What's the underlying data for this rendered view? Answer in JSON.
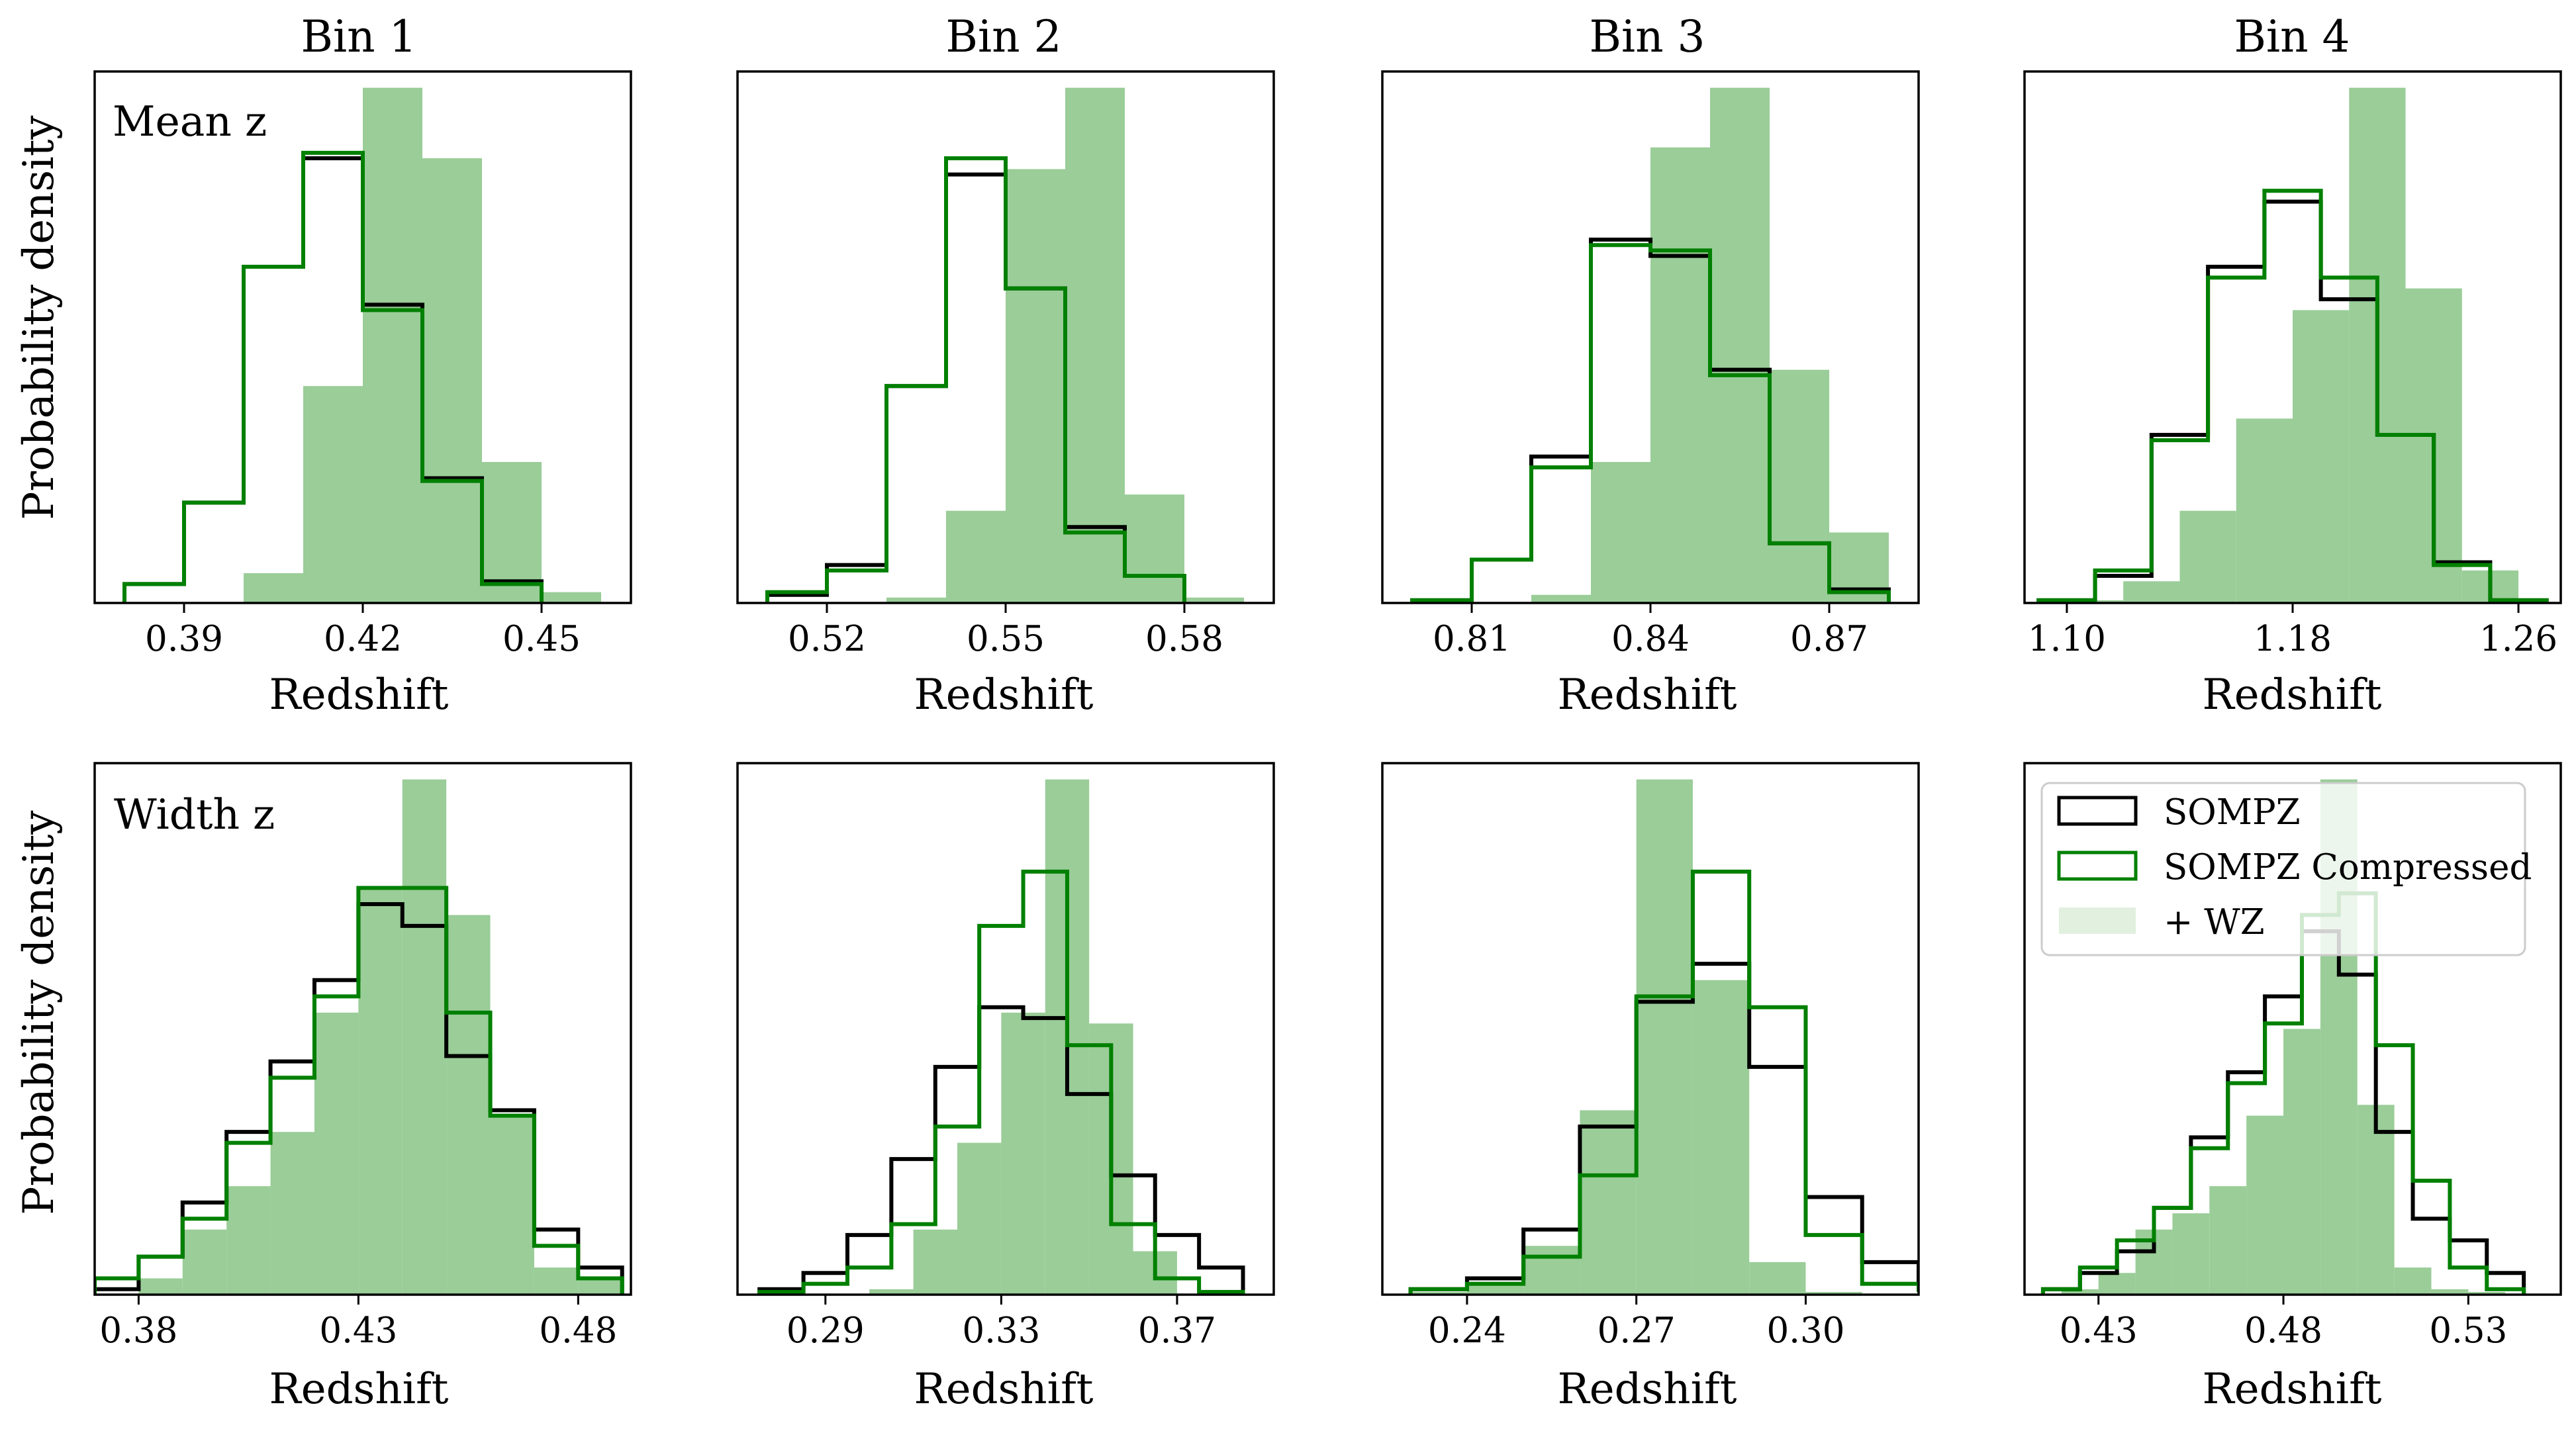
{
  "figure": {
    "column_titles": [
      "Bin 1",
      "Bin 2",
      "Bin 3",
      "Bin 4"
    ],
    "row_labels": [
      "Mean z",
      "Width z"
    ],
    "xlabel": "Redshift",
    "ylabel": "Probability density"
  },
  "legend": {
    "entries": [
      {
        "label": "SOMPZ",
        "kind": "outline",
        "color": "#000000"
      },
      {
        "label": "SOMPZ Compressed",
        "kind": "outline",
        "color": "#008000"
      },
      {
        "label": "+ WZ",
        "kind": "filled",
        "color": "#e2f0e0"
      }
    ],
    "location": "upper right of bottom-right panel"
  },
  "colors": {
    "sompz": "#000000",
    "compressed": "#008000",
    "wz_fill": "#9acd98"
  },
  "chart_data": [
    {
      "type": "histogram",
      "title": "Bin 1",
      "panel_label": "Mean z",
      "xlabel": "",
      "ylabel": "Probability density",
      "xlim": [
        0.375,
        0.465
      ],
      "ylim": [
        0,
        0.98
      ],
      "xticks": [
        0.39,
        0.42,
        0.45
      ],
      "xticklabels": [
        "0.39",
        "0.42",
        "0.45"
      ],
      "series": [
        {
          "name": "+ WZ",
          "style": "filled",
          "color": "#9acd98",
          "edges": [
            0.4,
            0.41,
            0.42,
            0.43,
            0.44,
            0.45,
            0.46
          ],
          "values": [
            0.055,
            0.4,
            0.95,
            0.82,
            0.26,
            0.02
          ]
        },
        {
          "name": "SOMPZ",
          "style": "step",
          "color": "#000000",
          "edges": [
            0.38,
            0.39,
            0.4,
            0.41,
            0.42,
            0.43,
            0.44,
            0.45
          ],
          "values": [
            0.035,
            0.185,
            0.62,
            0.82,
            0.55,
            0.23,
            0.04
          ]
        },
        {
          "name": "SOMPZ Compressed",
          "style": "step",
          "color": "#008000",
          "edges": [
            0.38,
            0.39,
            0.4,
            0.41,
            0.42,
            0.43,
            0.44,
            0.45
          ],
          "values": [
            0.035,
            0.185,
            0.62,
            0.83,
            0.54,
            0.225,
            0.035
          ]
        }
      ]
    },
    {
      "type": "histogram",
      "title": "Bin 2",
      "panel_label": "",
      "xlabel": "",
      "ylabel": "",
      "xlim": [
        0.505,
        0.595
      ],
      "ylim": [
        0,
        0.98
      ],
      "xticks": [
        0.52,
        0.55,
        0.58
      ],
      "xticklabels": [
        "0.52",
        "0.55",
        "0.58"
      ],
      "series": [
        {
          "name": "+ WZ",
          "style": "filled",
          "color": "#9acd98",
          "edges": [
            0.53,
            0.54,
            0.55,
            0.56,
            0.57,
            0.58,
            0.59
          ],
          "values": [
            0.01,
            0.17,
            0.8,
            0.95,
            0.2,
            0.01
          ]
        },
        {
          "name": "SOMPZ",
          "style": "step",
          "color": "#000000",
          "edges": [
            0.51,
            0.52,
            0.53,
            0.54,
            0.55,
            0.56,
            0.57,
            0.58
          ],
          "values": [
            0.015,
            0.07,
            0.4,
            0.79,
            0.58,
            0.14,
            0.05
          ]
        },
        {
          "name": "SOMPZ Compressed",
          "style": "step",
          "color": "#008000",
          "edges": [
            0.51,
            0.52,
            0.53,
            0.54,
            0.55,
            0.56,
            0.57,
            0.58
          ],
          "values": [
            0.02,
            0.06,
            0.4,
            0.82,
            0.58,
            0.13,
            0.05
          ]
        }
      ]
    },
    {
      "type": "histogram",
      "title": "Bin 3",
      "panel_label": "",
      "xlabel": "",
      "ylabel": "",
      "xlim": [
        0.795,
        0.885
      ],
      "ylim": [
        0,
        0.98
      ],
      "xticks": [
        0.81,
        0.84,
        0.87
      ],
      "xticklabels": [
        "0.81",
        "0.84",
        "0.87"
      ],
      "series": [
        {
          "name": "+ WZ",
          "style": "filled",
          "color": "#9acd98",
          "edges": [
            0.82,
            0.83,
            0.84,
            0.85,
            0.86,
            0.87,
            0.88
          ],
          "values": [
            0.015,
            0.26,
            0.84,
            0.95,
            0.43,
            0.13
          ]
        },
        {
          "name": "SOMPZ",
          "style": "step",
          "color": "#000000",
          "edges": [
            0.8,
            0.81,
            0.82,
            0.83,
            0.84,
            0.85,
            0.86,
            0.87,
            0.88
          ],
          "values": [
            0.005,
            0.08,
            0.27,
            0.67,
            0.64,
            0.43,
            0.11,
            0.025
          ]
        },
        {
          "name": "SOMPZ Compressed",
          "style": "step",
          "color": "#008000",
          "edges": [
            0.8,
            0.81,
            0.82,
            0.83,
            0.84,
            0.85,
            0.86,
            0.87,
            0.88
          ],
          "values": [
            0.005,
            0.08,
            0.25,
            0.66,
            0.65,
            0.42,
            0.11,
            0.02
          ]
        }
      ]
    },
    {
      "type": "histogram",
      "title": "Bin 4",
      "panel_label": "",
      "xlabel": "",
      "ylabel": "",
      "xlim": [
        1.085,
        1.275
      ],
      "ylim": [
        0,
        0.98
      ],
      "xticks": [
        1.1,
        1.18,
        1.26
      ],
      "xticklabels": [
        "1.10",
        "1.18",
        "1.26"
      ],
      "series": [
        {
          "name": "+ WZ",
          "style": "filled",
          "color": "#9acd98",
          "edges": [
            1.1,
            1.12,
            1.14,
            1.16,
            1.18,
            1.2,
            1.22,
            1.24,
            1.26
          ],
          "values": [
            0.005,
            0.04,
            0.17,
            0.34,
            0.54,
            0.95,
            0.58,
            0.06
          ]
        },
        {
          "name": "SOMPZ",
          "style": "step",
          "color": "#000000",
          "edges": [
            1.09,
            1.11,
            1.13,
            1.15,
            1.17,
            1.19,
            1.21,
            1.23,
            1.25,
            1.27
          ],
          "values": [
            0.005,
            0.05,
            0.31,
            0.62,
            0.74,
            0.56,
            0.31,
            0.075,
            0.005
          ]
        },
        {
          "name": "SOMPZ Compressed",
          "style": "step",
          "color": "#008000",
          "edges": [
            1.09,
            1.11,
            1.13,
            1.15,
            1.17,
            1.19,
            1.21,
            1.23,
            1.25,
            1.27
          ],
          "values": [
            0.005,
            0.06,
            0.3,
            0.6,
            0.76,
            0.6,
            0.31,
            0.07,
            0.005
          ]
        }
      ]
    },
    {
      "type": "histogram",
      "title": "",
      "panel_label": "Width z",
      "xlabel": "Redshift",
      "ylabel": "Probability density",
      "xlim": [
        0.37,
        0.492
      ],
      "ylim": [
        0,
        0.98
      ],
      "xticks": [
        0.38,
        0.43,
        0.48
      ],
      "xticklabels": [
        "0.38",
        "0.43",
        "0.48"
      ],
      "series": [
        {
          "name": "+ WZ",
          "style": "filled",
          "color": "#9acd98",
          "edges": [
            0.38,
            0.39,
            0.4,
            0.41,
            0.42,
            0.43,
            0.44,
            0.45,
            0.46,
            0.47,
            0.48,
            0.49
          ],
          "values": [
            0.03,
            0.12,
            0.2,
            0.3,
            0.52,
            0.75,
            0.95,
            0.7,
            0.33,
            0.05,
            0.03
          ]
        },
        {
          "name": "SOMPZ",
          "style": "step",
          "color": "#000000",
          "edges": [
            0.37,
            0.38,
            0.39,
            0.4,
            0.41,
            0.42,
            0.43,
            0.44,
            0.45,
            0.46,
            0.47,
            0.48,
            0.49
          ],
          "values": [
            0.01,
            0.07,
            0.17,
            0.3,
            0.43,
            0.58,
            0.72,
            0.68,
            0.44,
            0.34,
            0.12,
            0.05
          ]
        },
        {
          "name": "SOMPZ Compressed",
          "style": "step",
          "color": "#008000",
          "edges": [
            0.37,
            0.38,
            0.39,
            0.4,
            0.41,
            0.42,
            0.43,
            0.44,
            0.45,
            0.46,
            0.47,
            0.48,
            0.49
          ],
          "values": [
            0.03,
            0.07,
            0.14,
            0.28,
            0.4,
            0.55,
            0.75,
            0.75,
            0.52,
            0.33,
            0.09,
            0.03
          ]
        }
      ]
    },
    {
      "type": "histogram",
      "title": "",
      "panel_label": "",
      "xlabel": "Redshift",
      "ylabel": "",
      "xlim": [
        0.27,
        0.392
      ],
      "ylim": [
        0,
        0.98
      ],
      "xticks": [
        0.29,
        0.33,
        0.37
      ],
      "xticklabels": [
        "0.29",
        "0.33",
        "0.37"
      ],
      "series": [
        {
          "name": "+ WZ",
          "style": "filled",
          "color": "#9acd98",
          "edges": [
            0.3,
            0.31,
            0.32,
            0.33,
            0.34,
            0.35,
            0.36,
            0.37
          ],
          "values": [
            0.01,
            0.12,
            0.28,
            0.52,
            0.95,
            0.5,
            0.08
          ]
        },
        {
          "name": "SOMPZ",
          "style": "step",
          "color": "#000000",
          "edges": [
            0.275,
            0.285,
            0.295,
            0.305,
            0.315,
            0.325,
            0.335,
            0.345,
            0.355,
            0.365,
            0.375,
            0.385
          ],
          "values": [
            0.01,
            0.04,
            0.11,
            0.25,
            0.42,
            0.53,
            0.51,
            0.37,
            0.22,
            0.11,
            0.05
          ]
        },
        {
          "name": "SOMPZ Compressed",
          "style": "step",
          "color": "#008000",
          "edges": [
            0.275,
            0.285,
            0.295,
            0.305,
            0.315,
            0.325,
            0.335,
            0.345,
            0.355,
            0.365,
            0.375,
            0.385
          ],
          "values": [
            0.005,
            0.02,
            0.05,
            0.13,
            0.31,
            0.68,
            0.78,
            0.46,
            0.13,
            0.03,
            0.005
          ]
        }
      ]
    },
    {
      "type": "histogram",
      "title": "",
      "panel_label": "",
      "xlabel": "Redshift",
      "ylabel": "",
      "xlim": [
        0.225,
        0.32
      ],
      "ylim": [
        0,
        0.98
      ],
      "xticks": [
        0.24,
        0.27,
        0.3
      ],
      "xticklabels": [
        "0.24",
        "0.27",
        "0.30"
      ],
      "series": [
        {
          "name": "+ WZ",
          "style": "filled",
          "color": "#9acd98",
          "edges": [
            0.23,
            0.24,
            0.25,
            0.26,
            0.27,
            0.28,
            0.29,
            0.3,
            0.31
          ],
          "values": [
            0.005,
            0.02,
            0.09,
            0.34,
            0.95,
            0.58,
            0.06,
            0.005
          ]
        },
        {
          "name": "SOMPZ",
          "style": "step",
          "color": "#000000",
          "edges": [
            0.23,
            0.24,
            0.25,
            0.26,
            0.27,
            0.28,
            0.29,
            0.3,
            0.31,
            0.32
          ],
          "values": [
            0.01,
            0.03,
            0.12,
            0.31,
            0.54,
            0.61,
            0.42,
            0.18,
            0.06,
            0.01
          ]
        },
        {
          "name": "SOMPZ Compressed",
          "style": "step",
          "color": "#008000",
          "edges": [
            0.23,
            0.24,
            0.25,
            0.26,
            0.27,
            0.28,
            0.29,
            0.3,
            0.31,
            0.32
          ],
          "values": [
            0.01,
            0.02,
            0.07,
            0.22,
            0.55,
            0.78,
            0.53,
            0.11,
            0.02,
            0.005
          ]
        }
      ]
    },
    {
      "type": "histogram",
      "title": "",
      "panel_label": "",
      "xlabel": "Redshift",
      "ylabel": "",
      "xlim": [
        0.41,
        0.555
      ],
      "ylim": [
        0,
        0.98
      ],
      "xticks": [
        0.43,
        0.48,
        0.53
      ],
      "xticklabels": [
        "0.43",
        "0.48",
        "0.53"
      ],
      "series": [
        {
          "name": "+ WZ",
          "style": "filled",
          "color": "#9acd98",
          "edges": [
            0.42,
            0.43,
            0.44,
            0.45,
            0.46,
            0.47,
            0.48,
            0.49,
            0.5,
            0.51,
            0.52,
            0.53,
            0.54
          ],
          "values": [
            0.01,
            0.04,
            0.12,
            0.15,
            0.2,
            0.33,
            0.49,
            0.95,
            0.35,
            0.05,
            0.01,
            0.005
          ]
        },
        {
          "name": "SOMPZ",
          "style": "step",
          "color": "#000000",
          "edges": [
            0.415,
            0.425,
            0.435,
            0.445,
            0.455,
            0.465,
            0.475,
            0.485,
            0.495,
            0.505,
            0.515,
            0.525,
            0.535,
            0.545
          ],
          "values": [
            0.01,
            0.04,
            0.08,
            0.16,
            0.29,
            0.41,
            0.55,
            0.67,
            0.59,
            0.3,
            0.14,
            0.1,
            0.04
          ]
        },
        {
          "name": "SOMPZ Compressed",
          "style": "step",
          "color": "#008000",
          "edges": [
            0.415,
            0.425,
            0.435,
            0.445,
            0.455,
            0.465,
            0.475,
            0.485,
            0.495,
            0.505,
            0.515,
            0.525,
            0.535,
            0.545
          ],
          "values": [
            0.01,
            0.05,
            0.1,
            0.16,
            0.27,
            0.39,
            0.5,
            0.7,
            0.74,
            0.46,
            0.21,
            0.05,
            0.01
          ]
        }
      ]
    }
  ]
}
